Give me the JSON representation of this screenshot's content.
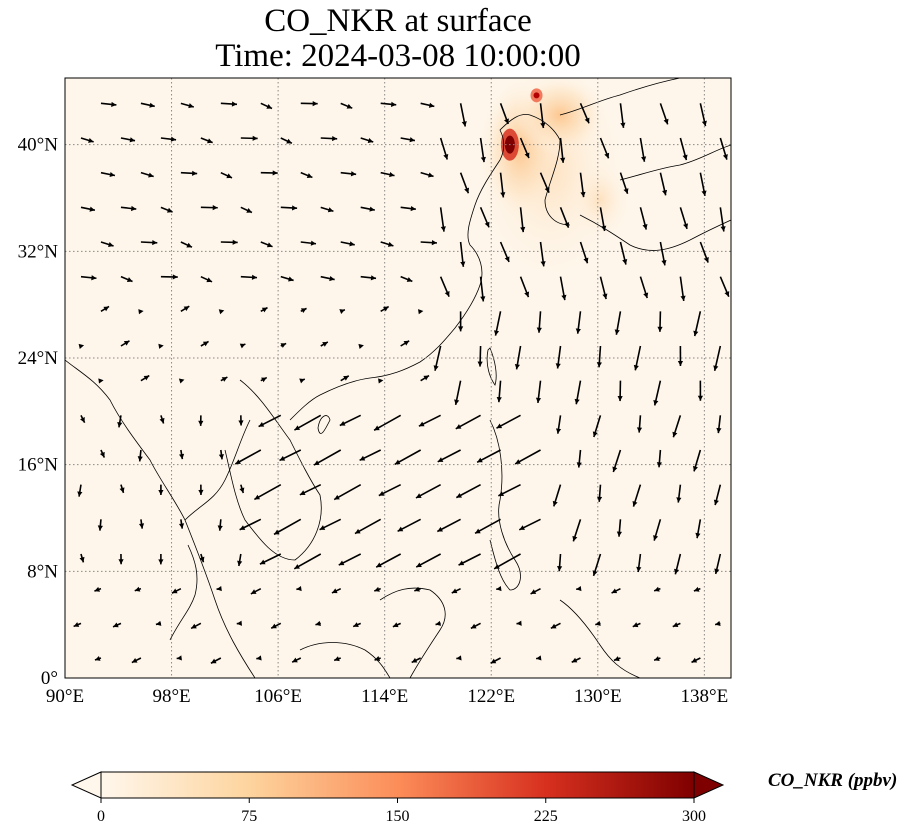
{
  "title": {
    "line1": "CO_NKR at surface",
    "line2": "Time: 2024-03-08 10:00:00"
  },
  "map": {
    "projection": "PlateCarree",
    "extent": {
      "lon": [
        90,
        140
      ],
      "lat": [
        0,
        45
      ]
    },
    "gridlines": "dotted",
    "lon_ticks": [
      {
        "value": 90,
        "label": "90°E"
      },
      {
        "value": 98,
        "label": "98°E"
      },
      {
        "value": 106,
        "label": "106°E"
      },
      {
        "value": 114,
        "label": "114°E"
      },
      {
        "value": 122,
        "label": "122°E"
      },
      {
        "value": 130,
        "label": "130°E"
      },
      {
        "value": 138,
        "label": "138°E"
      }
    ],
    "lat_ticks": [
      {
        "value": 0,
        "label": "0°"
      },
      {
        "value": 8,
        "label": "8°N"
      },
      {
        "value": 16,
        "label": "16°N"
      },
      {
        "value": 24,
        "label": "24°N"
      },
      {
        "value": 32,
        "label": "32°N"
      },
      {
        "value": 40,
        "label": "40°N"
      }
    ],
    "hotspots": [
      {
        "lon": 123.4,
        "lat": 40.0,
        "value": 300
      },
      {
        "lon": 125.4,
        "lat": 43.7,
        "value": 220
      }
    ],
    "wind_vectors_note": "surface wind field shown as arrows"
  },
  "colorbar": {
    "label": "CO_NKR (ppbv)",
    "colormap": "OrRd",
    "min": 0,
    "max": 300,
    "extend": "both",
    "ticks": [
      {
        "value": 0,
        "label": "0"
      },
      {
        "value": 75,
        "label": "75"
      },
      {
        "value": 150,
        "label": "150"
      },
      {
        "value": 225,
        "label": "225"
      },
      {
        "value": 300,
        "label": "300"
      }
    ],
    "colors": [
      "#fff7ec",
      "#fdd49e",
      "#fc8d59",
      "#d7301f",
      "#7f0000"
    ]
  }
}
